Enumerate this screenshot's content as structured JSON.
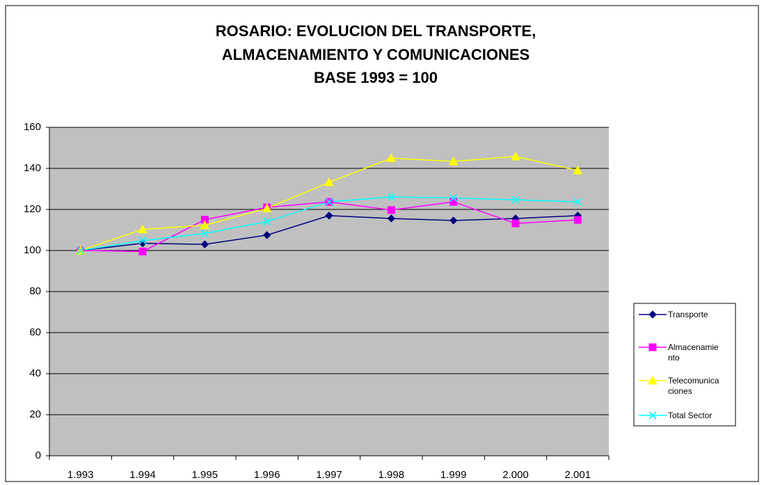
{
  "chart_data": {
    "type": "line",
    "title": [
      "ROSARIO: EVOLUCION DEL TRANSPORTE,",
      "ALMACENAMIENTO Y COMUNICACIONES",
      "BASE 1993 = 100"
    ],
    "categories": [
      "1.993",
      "1.994",
      "1.995",
      "1.996",
      "1.997",
      "1.998",
      "1.999",
      "2.000",
      "2.001"
    ],
    "series": [
      {
        "name": "Transporte",
        "color": "#000080",
        "marker": "diamond",
        "values": [
          100,
          103.5,
          103,
          107.5,
          117,
          115.6,
          114.6,
          115.6,
          117
        ]
      },
      {
        "name": "Almacenamiento",
        "color": "#ff00ff",
        "marker": "square",
        "values": [
          100,
          99.5,
          115,
          121,
          123.7,
          119.7,
          123.7,
          113.2,
          114.9
        ]
      },
      {
        "name": "Telecomunicaciones",
        "color": "#ffff00",
        "marker": "triangle",
        "values": [
          100,
          110.3,
          112.3,
          120.5,
          133.2,
          145,
          143.4,
          145.8,
          139
        ]
      },
      {
        "name": "Total Sector",
        "color": "#00ffff",
        "marker": "x",
        "values": [
          100,
          104.8,
          108.3,
          114.1,
          123.7,
          126.1,
          125.6,
          124.7,
          123.7
        ]
      }
    ],
    "ylim": [
      0,
      160
    ],
    "yticks": [
      0,
      20,
      40,
      60,
      80,
      100,
      120,
      140,
      160
    ],
    "grid": true,
    "legend": "right"
  }
}
